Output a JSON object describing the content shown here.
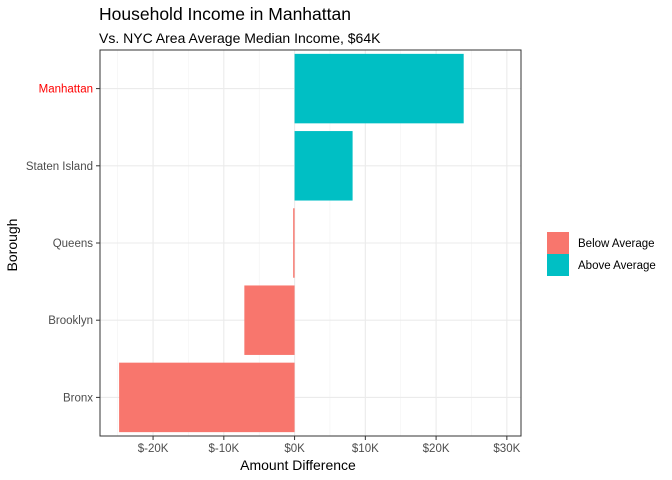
{
  "chart_data": {
    "type": "bar",
    "orientation": "horizontal",
    "title": "Household Income in Manhattan",
    "subtitle": "Vs. NYC Area Average Median Income, $64K",
    "xlabel": "Amount Difference",
    "ylabel": "Borough",
    "xlim": [
      -27500,
      32000
    ],
    "x_ticks": [
      -20000,
      -10000,
      0,
      10000,
      20000,
      30000
    ],
    "x_tick_labels": [
      "$-20K",
      "$-10K",
      "$0K",
      "$10K",
      "$20K",
      "$30K"
    ],
    "grid": true,
    "legend_position": "right",
    "legend": [
      {
        "label": "Below Average",
        "color": "#F8766D"
      },
      {
        "label": "Above Average",
        "color": "#00BFC4"
      }
    ],
    "highlight_category": "Manhattan",
    "highlight_color": "#FF0000",
    "categories": [
      "Bronx",
      "Brooklyn",
      "Queens",
      "Staten Island",
      "Manhattan"
    ],
    "values": [
      -24800,
      -7100,
      -200,
      8200,
      23900
    ],
    "groups": [
      "Below Average",
      "Below Average",
      "Below Average",
      "Above Average",
      "Above Average"
    ]
  }
}
